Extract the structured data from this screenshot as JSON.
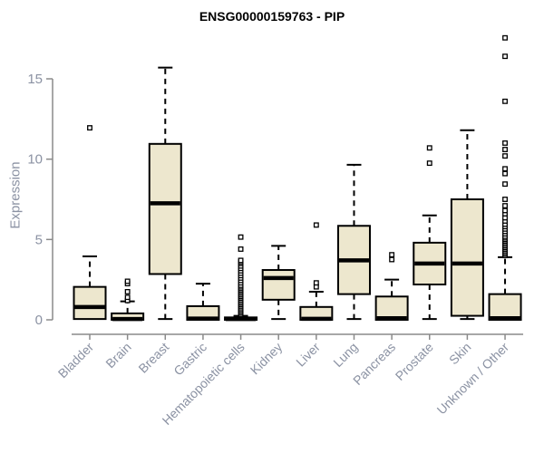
{
  "colors": {
    "background": "#ffffff",
    "box_fill": "#ede7ce",
    "box_border": "#000000",
    "median": "#000000",
    "whisker": "#000000",
    "outlier_stroke": "#000000",
    "outlier_fill": "#ffffff",
    "axis_line": "#8a8a8a",
    "tick_text": "#8b92a3",
    "title_text": "#000000"
  },
  "chart_data": {
    "type": "boxplot",
    "title": "ENSG00000159763 - PIP",
    "ylabel": "Expression",
    "xlabel": "",
    "yticks": [
      0,
      5,
      10,
      15
    ],
    "ylim": [
      0,
      17.8
    ],
    "grid": false,
    "legend": "none",
    "categories": [
      "Bladder",
      "Brain",
      "Breast",
      "Gastric",
      "Hematopoietic cells",
      "Kidney",
      "Liver",
      "Lung",
      "Pancreas",
      "Prostate",
      "Skin",
      "Unknown / Other"
    ],
    "boxes": [
      {
        "category": "Bladder",
        "whisker_low": 0.05,
        "q1": 0.05,
        "median": 0.8,
        "q3": 2.05,
        "whisker_high": 3.95,
        "outliers": [
          11.95
        ]
      },
      {
        "category": "Brain",
        "whisker_low": 0,
        "q1": 0,
        "median": 0.05,
        "q3": 0.4,
        "whisker_high": 1.15,
        "outliers": [
          1.2,
          1.4,
          1.75,
          2.25,
          2.4
        ]
      },
      {
        "category": "Breast",
        "whisker_low": 0.05,
        "q1": 2.85,
        "median": 7.25,
        "q3": 10.95,
        "whisker_high": 15.7,
        "outliers": []
      },
      {
        "category": "Gastric",
        "whisker_low": 0,
        "q1": 0,
        "median": 0.08,
        "q3": 0.85,
        "whisker_high": 2.25,
        "outliers": []
      },
      {
        "category": "Hematopoietic cells",
        "whisker_low": 0,
        "q1": 0,
        "median": 0.05,
        "q3": 0.15,
        "whisker_high": 0.25,
        "outliers": [
          0.35,
          0.45,
          0.55,
          0.65,
          0.75,
          0.85,
          0.95,
          1.05,
          1.15,
          1.25,
          1.35,
          1.45,
          1.55,
          1.65,
          1.75,
          1.85,
          1.95,
          2.05,
          2.15,
          2.3,
          2.45,
          2.6,
          2.75,
          2.9,
          3.05,
          3.2,
          3.35,
          3.5,
          3.6,
          3.7,
          4.4,
          5.15
        ]
      },
      {
        "category": "Kidney",
        "whisker_low": 0.05,
        "q1": 1.25,
        "median": 2.6,
        "q3": 3.1,
        "whisker_high": 4.6,
        "outliers": []
      },
      {
        "category": "Liver",
        "whisker_low": 0,
        "q1": 0,
        "median": 0.06,
        "q3": 0.8,
        "whisker_high": 1.75,
        "outliers": [
          2.05,
          2.3,
          5.9
        ]
      },
      {
        "category": "Lung",
        "whisker_low": 0.05,
        "q1": 1.6,
        "median": 3.7,
        "q3": 5.85,
        "whisker_high": 9.65,
        "outliers": []
      },
      {
        "category": "Pancreas",
        "whisker_low": 0,
        "q1": 0,
        "median": 0.1,
        "q3": 1.45,
        "whisker_high": 2.5,
        "outliers": [
          3.75,
          4.05
        ]
      },
      {
        "category": "Prostate",
        "whisker_low": 0.05,
        "q1": 2.2,
        "median": 3.5,
        "q3": 4.8,
        "whisker_high": 6.5,
        "outliers": [
          9.75,
          10.7
        ]
      },
      {
        "category": "Skin",
        "whisker_low": 0.05,
        "q1": 0.25,
        "median": 3.5,
        "q3": 7.5,
        "whisker_high": 11.8,
        "outliers": []
      },
      {
        "category": "Unknown / Other",
        "whisker_low": 0,
        "q1": 0,
        "median": 0.1,
        "q3": 1.6,
        "whisker_high": 3.9,
        "outliers": [
          4.0,
          4.1,
          4.2,
          4.3,
          4.4,
          4.5,
          4.6,
          4.7,
          4.8,
          4.9,
          5.0,
          5.1,
          5.2,
          5.35,
          5.5,
          5.65,
          5.8,
          5.95,
          6.15,
          6.35,
          6.6,
          6.8,
          7.1,
          7.5,
          8.45,
          9.1,
          9.4,
          10.2,
          10.6,
          11.0,
          13.6,
          16.4,
          17.55
        ]
      }
    ]
  }
}
